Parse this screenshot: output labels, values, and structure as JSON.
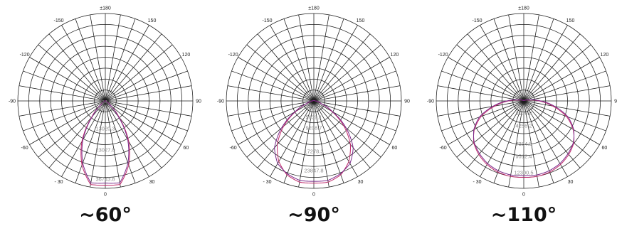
{
  "chart_data": [
    {
      "type": "polar",
      "title": "~60°",
      "theta_labels": [
        "±180",
        "150",
        "120",
        "90",
        "60",
        "30",
        "0",
        "- 30",
        "-60",
        "-90",
        "-120",
        "-150"
      ],
      "ring_labels": [
        "534.6",
        "3801.5",
        "13020.3",
        "23027.0",
        "36743.8"
      ],
      "ring_label_values": [
        534.6,
        3801.5,
        13020.3,
        23027.0,
        36743.8
      ],
      "rmax": 41000,
      "series": [
        {
          "color": "#c02a6a",
          "points": [
            [
              0,
              39500
            ],
            [
              10,
              39800
            ],
            [
              20,
              32000
            ],
            [
              30,
              22000
            ],
            [
              40,
              10000
            ],
            [
              50,
              3000
            ],
            [
              60,
              900
            ],
            [
              90,
              200
            ],
            [
              180,
              0
            ]
          ]
        },
        {
          "color": "#7a2a8a",
          "points": [
            [
              0,
              38500
            ],
            [
              10,
              39000
            ],
            [
              20,
              31000
            ],
            [
              30,
              21000
            ],
            [
              40,
              9200
            ],
            [
              50,
              2600
            ],
            [
              60,
              800
            ],
            [
              90,
              180
            ],
            [
              180,
              0
            ]
          ]
        }
      ]
    },
    {
      "type": "polar",
      "title": "~90°",
      "theta_labels": [
        "±180",
        "150",
        "120",
        "90",
        "60",
        "30",
        "0",
        "- 30",
        "-60",
        "-90",
        "-120",
        "-150"
      ],
      "ring_labels": [
        "1966.0",
        "5639.1",
        "9208.7",
        "17278.3",
        "23847.8"
      ],
      "ring_label_values": [
        1966.0,
        5639.1,
        9208.7,
        17278.3,
        23847.8
      ],
      "rmax": 30000,
      "series": [
        {
          "color": "#c02a6a",
          "points": [
            [
              0,
              28200
            ],
            [
              10,
              28300
            ],
            [
              20,
              27000
            ],
            [
              30,
              24000
            ],
            [
              40,
              19500
            ],
            [
              50,
              13500
            ],
            [
              60,
              7000
            ],
            [
              70,
              2500
            ],
            [
              90,
              400
            ],
            [
              180,
              0
            ]
          ]
        },
        {
          "color": "#7a2a8a",
          "points": [
            [
              0,
              27600
            ],
            [
              10,
              27700
            ],
            [
              20,
              26600
            ],
            [
              30,
              24800
            ],
            [
              40,
              21000
            ],
            [
              50,
              14500
            ],
            [
              60,
              7500
            ],
            [
              70,
              2700
            ],
            [
              90,
              450
            ],
            [
              180,
              0
            ]
          ]
        }
      ]
    },
    {
      "type": "polar",
      "title": "~110°",
      "theta_labels": [
        "±180",
        "150",
        "120",
        "90",
        "60",
        "30",
        "0",
        "- 30",
        "-60",
        "-90",
        "-120",
        "-150"
      ],
      "ring_labels": [
        "2109.8",
        "4256.2",
        "7384.3",
        "9512.4",
        "12300.5"
      ],
      "ring_label_values": [
        2109.8,
        4256.2,
        7384.3,
        9512.4,
        12300.5
      ],
      "rmax": 15000,
      "series": [
        {
          "color": "#c02a6a",
          "points": [
            [
              0,
              13100
            ],
            [
              10,
              13150
            ],
            [
              20,
              13000
            ],
            [
              30,
              12600
            ],
            [
              40,
              12000
            ],
            [
              50,
              11200
            ],
            [
              60,
              9800
            ],
            [
              70,
              7800
            ],
            [
              80,
              5000
            ],
            [
              90,
              2600
            ],
            [
              100,
              800
            ],
            [
              120,
              200
            ],
            [
              180,
              0
            ]
          ]
        },
        {
          "color": "#7a2a8a",
          "points": [
            [
              0,
              12800
            ],
            [
              10,
              12900
            ],
            [
              20,
              12750
            ],
            [
              30,
              12400
            ],
            [
              40,
              11800
            ],
            [
              50,
              11100
            ],
            [
              60,
              9900
            ],
            [
              70,
              8100
            ],
            [
              80,
              5400
            ],
            [
              90,
              2900
            ],
            [
              100,
              900
            ],
            [
              120,
              220
            ],
            [
              180,
              0
            ]
          ]
        }
      ]
    }
  ]
}
